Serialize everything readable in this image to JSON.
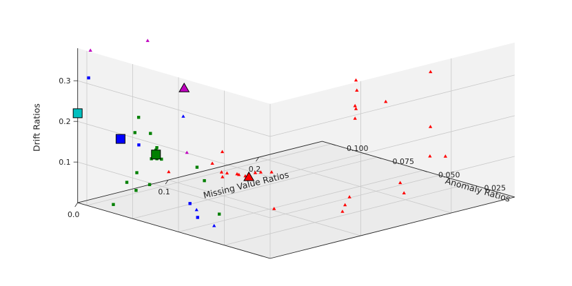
{
  "chart_data": {
    "type": "scatter3d",
    "xlabel": "Missing Value Ratios",
    "ylabel": "Anomaly Ratios",
    "zlabel": "Drift Ratios",
    "xticks": [
      "0.0",
      "0.1",
      "0.2"
    ],
    "yticks": [
      "0.025",
      "0.050",
      "0.075",
      "0.100"
    ],
    "zticks": [
      "0.1",
      "0.2",
      "0.3"
    ],
    "xlim": [
      0,
      0.27
    ],
    "ylim": [
      0,
      0.105
    ],
    "zlim": [
      0,
      0.38
    ],
    "grid": true,
    "legend": "none",
    "colors": {
      "red": "#ff0000",
      "green": "#008000",
      "blue": "#0000ff",
      "magenta": "#bf00bf",
      "cyan": "#00bfbf"
    },
    "series": [
      {
        "color": "red",
        "marker": "triangle",
        "points": [
          [
            0.099,
            0.075,
            0.109
          ],
          [
            0.052,
            0.081,
            0.078
          ],
          [
            0.09,
            0.076,
            0.084
          ],
          [
            0.086,
            0.069,
            0.074
          ],
          [
            0.081,
            0.066,
            0.069
          ],
          [
            0.088,
            0.067,
            0.073
          ],
          [
            0.093,
            0.064,
            0.072
          ],
          [
            0.091,
            0.062,
            0.074
          ],
          [
            0.092,
            0.059,
            0.074
          ],
          [
            0.091,
            0.057,
            0.074
          ],
          [
            0.103,
            0.059,
            0.076
          ],
          [
            0.105,
            0.057,
            0.079
          ],
          [
            0.119,
            0.058,
            0.07
          ],
          [
            0.107,
            0.012,
            0.056
          ],
          [
            0.092,
            0.006,
            0.056
          ],
          [
            0.12,
            0.016,
            0.063
          ],
          [
            0.059,
            0.027,
            0.054
          ],
          [
            0.174,
            0.015,
            0.069
          ],
          [
            0.162,
            0.007,
            0.061
          ],
          [
            0.198,
            0.051,
            0.261
          ],
          [
            0.201,
            0.052,
            0.233
          ],
          [
            0.199,
            0.052,
            0.196
          ],
          [
            0.199,
            0.052,
            0.165
          ],
          [
            0.25,
            0.036,
            0.272
          ],
          [
            0.239,
            0.055,
            0.18
          ],
          [
            0.26,
            0.041,
            0.125
          ],
          [
            0.196,
            0.05,
            0.193
          ],
          [
            0.221,
            0.022,
            0.099
          ],
          [
            0.23,
            0.018,
            0.099
          ]
        ]
      },
      {
        "color": "green",
        "marker": "square",
        "points": [
          [
            0.041,
            0.092,
            0.204
          ],
          [
            0.05,
            0.09,
            0.162
          ],
          [
            0.045,
            0.096,
            0.159
          ],
          [
            0.053,
            0.088,
            0.128
          ],
          [
            0.05,
            0.087,
            0.125
          ],
          [
            0.047,
            0.088,
            0.104
          ],
          [
            0.047,
            0.085,
            0.108
          ],
          [
            0.048,
            0.083,
            0.109
          ],
          [
            0.065,
            0.072,
            0.094
          ],
          [
            0.061,
            0.066,
            0.071
          ],
          [
            0.039,
            0.092,
            0.069
          ],
          [
            0.03,
            0.093,
            0.049
          ],
          [
            0.043,
            0.087,
            0.044
          ],
          [
            0.024,
            0.085,
            0.043
          ],
          [
            0.005,
            0.088,
            0.015
          ],
          [
            0.043,
            0.049,
            0.021
          ]
        ]
      },
      {
        "color": "blue",
        "marker": "square",
        "points": [
          [
            0.004,
            0.101,
            0.31
          ],
          [
            0.023,
            0.083,
            0.158
          ],
          [
            0.039,
            0.063,
            0.031
          ],
          [
            0.011,
            0.045,
            0.036
          ]
        ]
      },
      {
        "color": "blue",
        "marker": "triangle",
        "points": [
          [
            0.066,
            0.08,
            0.208
          ],
          [
            0.024,
            0.052,
            0.038
          ],
          [
            0.011,
            0.036,
            0.027
          ]
        ]
      },
      {
        "color": "magenta",
        "marker": "triangle",
        "points": [
          [
            0.008,
            0.102,
            0.374
          ],
          [
            0.055,
            0.094,
            0.382
          ],
          [
            0.068,
            0.079,
            0.119
          ]
        ]
      },
      {
        "color": "red",
        "marker": "triangle",
        "size": "large",
        "points": [
          [
            0.1,
            0.061,
            0.064
          ]
        ]
      },
      {
        "color": "green",
        "marker": "square",
        "size": "large",
        "points": [
          [
            0.05,
            0.087,
            0.114
          ]
        ]
      },
      {
        "color": "blue",
        "marker": "square",
        "size": "large",
        "points": [
          [
            0.017,
            0.09,
            0.167
          ]
        ]
      },
      {
        "color": "magenta",
        "marker": "triangle",
        "size": "large",
        "points": [
          [
            0.067,
            0.08,
            0.276
          ]
        ]
      },
      {
        "color": "cyan",
        "marker": "square",
        "size": "large",
        "points": [
          [
            0.0,
            0.105,
            0.22
          ]
        ]
      }
    ]
  }
}
